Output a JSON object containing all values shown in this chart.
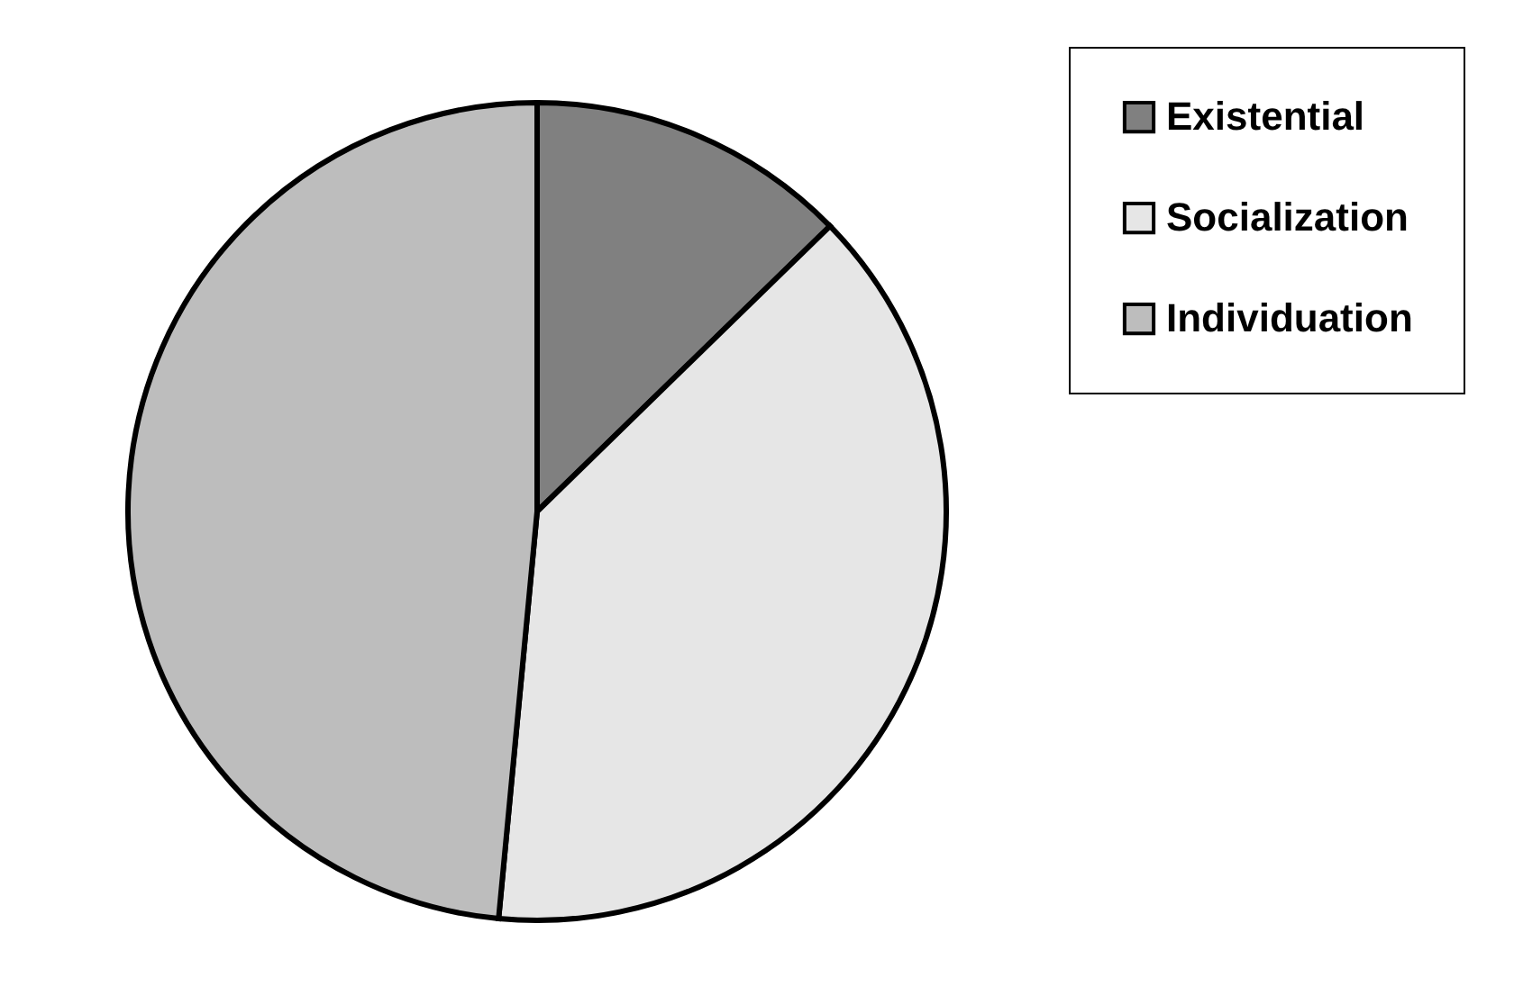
{
  "chart_data": {
    "type": "pie",
    "categories": [
      "Existential",
      "Socialization",
      "Individuation"
    ],
    "values": [
      12.7,
      38.8,
      48.5
    ],
    "colors": [
      "#808080",
      "#e6e6e6",
      "#bdbdbd"
    ],
    "legend": "top right"
  }
}
